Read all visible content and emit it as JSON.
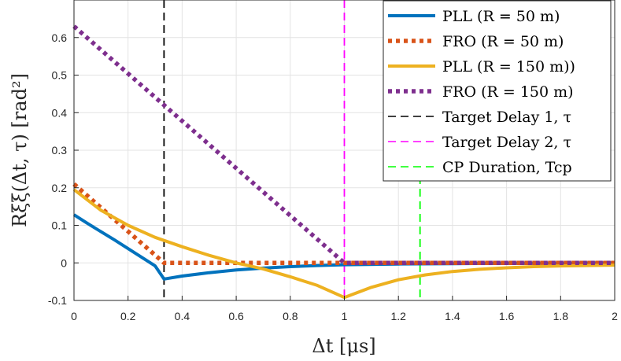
{
  "chart_data": {
    "type": "line",
    "xlabel": "Δt [μs]",
    "ylabel": "Rξξ(Δt, τ) [rad²]",
    "xlim": [
      0,
      2
    ],
    "ylim": [
      -0.1,
      0.7
    ],
    "grid": true,
    "legend_position": "top-right",
    "x_ticks": [
      0,
      0.2,
      0.4,
      0.6,
      0.8,
      1,
      1.2,
      1.4,
      1.6,
      1.8,
      2
    ],
    "x_tick_labels": [
      "0",
      "0.2",
      "0.4",
      "0.6",
      "0.8",
      "1",
      "1.2",
      "1.4",
      "1.6",
      "1.8",
      "2"
    ],
    "y_ticks": [
      -0.1,
      0,
      0.1,
      0.2,
      0.3,
      0.4,
      0.5,
      0.6
    ],
    "y_tick_labels": [
      "-0.1",
      "0",
      "0.1",
      "0.2",
      "0.3",
      "0.4",
      "0.5",
      "0.6"
    ],
    "series": [
      {
        "name": "PLL (R = 50 m)",
        "color": "#0072BD",
        "style": "solid",
        "x": [
          0,
          0.05,
          0.1,
          0.15,
          0.2,
          0.25,
          0.3,
          0.333,
          0.4,
          0.5,
          0.6,
          0.7,
          0.8,
          0.9,
          1.0,
          1.2,
          1.4,
          1.6,
          1.8,
          2.0
        ],
        "y": [
          0.128,
          0.105,
          0.083,
          0.061,
          0.038,
          0.015,
          -0.008,
          -0.043,
          -0.035,
          -0.026,
          -0.019,
          -0.014,
          -0.01,
          -0.007,
          -0.005,
          -0.003,
          -0.002,
          -0.001,
          -0.001,
          0.0
        ]
      },
      {
        "name": "FRO (R = 50 m)",
        "color": "#D95319",
        "style": "dotted",
        "x": [
          0,
          0.333,
          2.0
        ],
        "y": [
          0.21,
          0.0,
          0.0
        ]
      },
      {
        "name": "PLL (R = 150 m))",
        "color": "#EDB120",
        "style": "solid",
        "x": [
          0,
          0.1,
          0.2,
          0.3,
          0.4,
          0.5,
          0.6,
          0.7,
          0.8,
          0.9,
          1.0,
          1.1,
          1.2,
          1.3,
          1.4,
          1.5,
          1.6,
          1.7,
          1.8,
          1.9,
          2.0
        ],
        "y": [
          0.195,
          0.14,
          0.1,
          0.068,
          0.043,
          0.02,
          0.0,
          -0.016,
          -0.037,
          -0.06,
          -0.092,
          -0.065,
          -0.045,
          -0.032,
          -0.023,
          -0.017,
          -0.013,
          -0.01,
          -0.008,
          -0.007,
          -0.006
        ]
      },
      {
        "name": "FRO (R = 150 m)",
        "color": "#7E2F8E",
        "style": "dotted",
        "x": [
          0,
          1.0,
          2.0
        ],
        "y": [
          0.63,
          0.0,
          0.0
        ]
      }
    ],
    "vlines": [
      {
        "name": "Target Delay 1, τ",
        "x": 0.333,
        "color": "#000000",
        "style": "dashed"
      },
      {
        "name": "Target Delay 2, τ",
        "x": 1.0,
        "color": "#FF00FF",
        "style": "dashed"
      },
      {
        "name": "CP Duration, Tcp",
        "x": 1.28,
        "color": "#00FF00",
        "style": "dashed"
      }
    ],
    "legend": [
      "PLL (R = 50 m)",
      "FRO (R = 50 m)",
      "PLL (R = 150 m))",
      "FRO (R = 150 m)",
      "Target Delay 1, τ",
      "Target Delay 2, τ",
      "CP Duration, Tcp"
    ]
  }
}
